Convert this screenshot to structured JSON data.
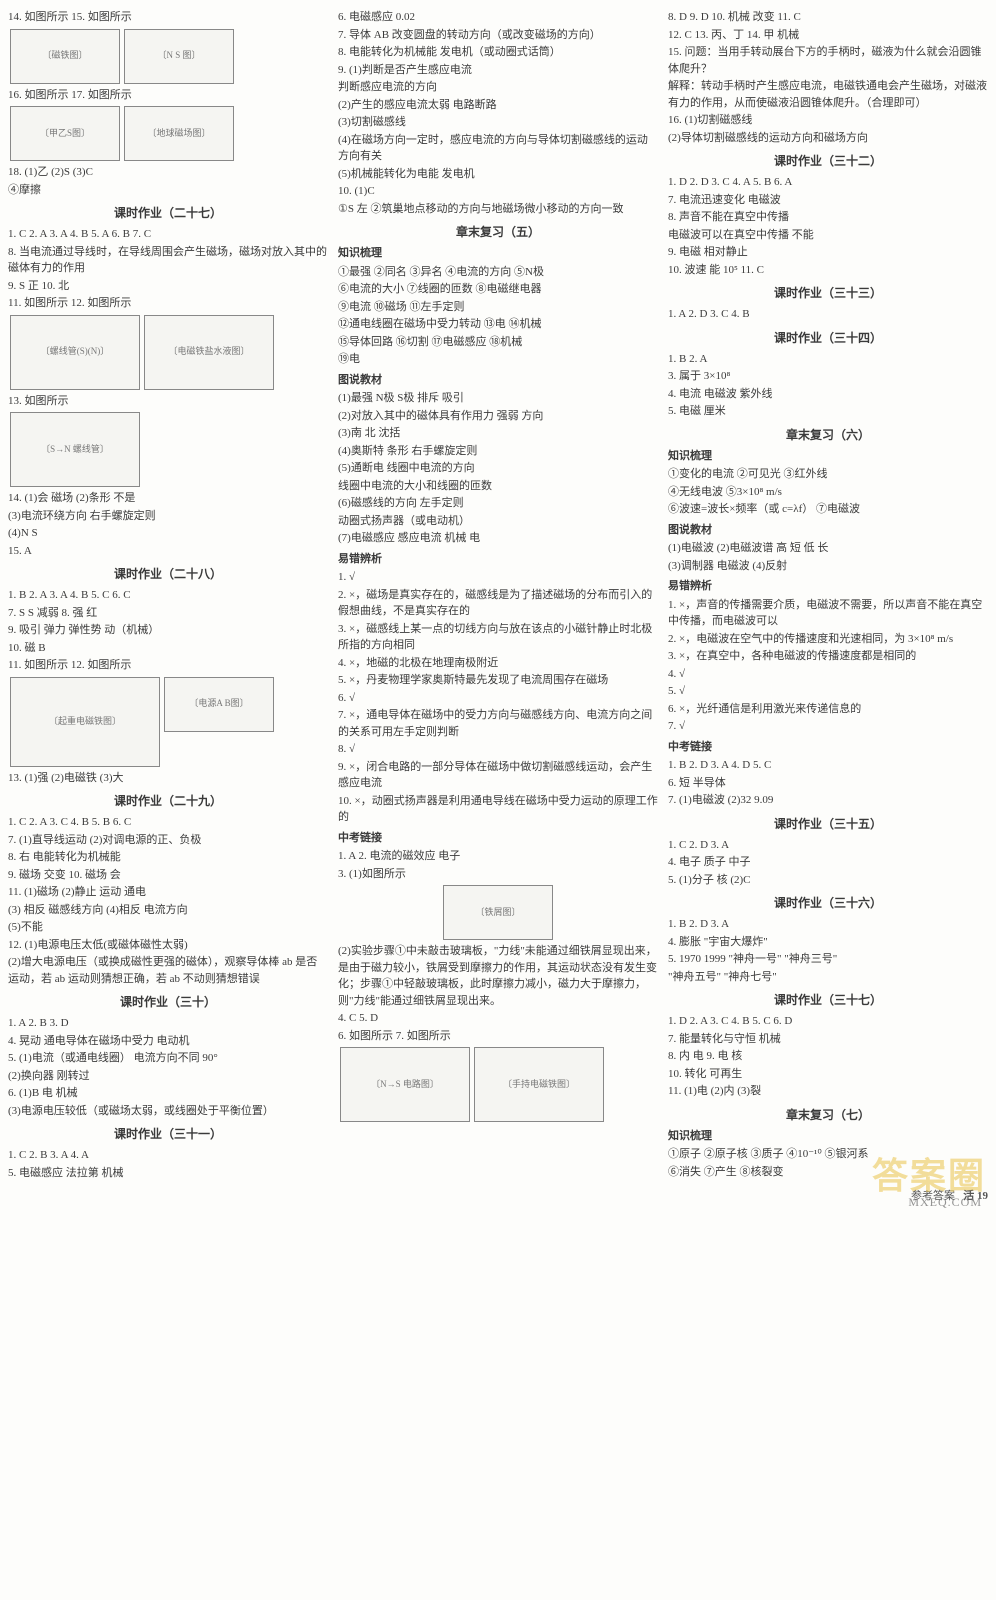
{
  "footer": {
    "text": "参考答案",
    "page": "活 19"
  },
  "watermark": {
    "main": "答案圈",
    "sub": "MXEQ.COM"
  },
  "col1": {
    "items_top": [
      "14. 如图所示        15. 如图所示",
      "16. 如图所示        17. 如图所示",
      "18. (1)乙  (2)S  (3)C",
      "    ④摩擦"
    ],
    "h27": "课时作业（二十七）",
    "l27": [
      "1. C  2. A  3. A  4. B  5. A  6. B  7. C",
      "8. 当电流通过导线时，在导线周围会产生磁场，磁场对放入其中的磁体有力的作用",
      "9. S  正  10. 北",
      "11. 如图所示        12. 如图所示",
      "13. 如图所示",
      "14. (1)会  磁场  (2)条形  不是",
      "    (3)电流环绕方向  右手螺旋定则",
      "    (4)N  S",
      "15. A"
    ],
    "h28": "课时作业（二十八）",
    "l28": [
      "1. B  2. A  3. A  4. B  5. C  6. C",
      "7. S  S  减弱  8. 强  红",
      "9. 吸引  弹力  弹性势  动（机械）",
      "10. 磁  B",
      "11. 如图所示        12. 如图所示",
      "13. (1)强  (2)电磁铁  (3)大"
    ],
    "h29": "课时作业（二十九）",
    "l29": [
      "1. C  2. A  3. C  4. B  5. B  6. C",
      "7. (1)直导线运动  (2)对调电源的正、负极",
      "8. 右  电能转化为机械能",
      "9. 磁场  交变  10. 磁场  会",
      "11. (1)磁场  (2)静止  运动  通电",
      "    (3) 相反  磁感线方向  (4)相反  电流方向",
      "    (5)不能",
      "12. (1)电源电压太低(或磁体磁性太弱)",
      "    (2)增大电源电压（或换成磁性更强的磁体），观察导体棒 ab 是否运动，若 ab 运动则猜想正确，若 ab 不动则猜想错误"
    ],
    "h30": "课时作业（三十）",
    "l30": [
      "1. A  2. B  3. D",
      "4. 晃动  通电导体在磁场中受力  电动机",
      "5. (1)电流（或通电线圈）  电流方向不同  90°",
      "   (2)换向器  刚转过",
      "6. (1)B  电  机械",
      "   (3)电源电压较低（或磁场太弱，或线圈处于平衡位置）"
    ],
    "h31": "课时作业（三十一）",
    "l31": [
      "1. C  2. B  3. A  4. A",
      "5. 电磁感应  法拉第  机械"
    ]
  },
  "col2": {
    "top": [
      "6. 电磁感应  0.02",
      "7. 导体 AB  改变圆盘的转动方向（或改变磁场的方向）",
      "8. 电能转化为机械能  发电机（或动圈式话筒）",
      "9. (1)判断是否产生感应电流",
      "   判断感应电流的方向",
      "   (2)产生的感应电流太弱  电路断路",
      "   (3)切割磁感线",
      "   (4)在磁场方向一定时，感应电流的方向与导体切割磁感线的运动方向有关",
      "   (5)机械能转化为电能  发电机",
      "10. (1)C",
      "    ①S  左  ②筑巢地点移动的方向与地磁场微小移动的方向一致"
    ],
    "h_rev5": "章末复习（五）",
    "sec_zsl": "知识梳理",
    "zsl": [
      "①最强 ②同名 ③异名 ④电流的方向 ⑤N极",
      "⑥电流的大小 ⑦线圈的匝数 ⑧电磁继电器",
      "⑨电流 ⑩磁场 ⑪左手定则",
      "⑫通电线圈在磁场中受力转动 ⑬电 ⑭机械",
      "⑮导体回路 ⑯切割 ⑰电磁感应 ⑱机械",
      "⑲电"
    ],
    "sec_tsjc": "图说教材",
    "tsjc": [
      "(1)最强  N极  S极  排斥  吸引",
      "(2)对放入其中的磁体具有作用力  强弱  方向",
      "(3)南  北  沈括",
      "(4)奥斯特  条形  右手螺旋定则",
      "(5)通断电  线圈中电流的方向",
      "    线圈中电流的大小和线圈的匝数",
      "(6)磁感线的方向  左手定则",
      "    动圈式扬声器（或电动机）",
      "(7)电磁感应  感应电流  机械  电"
    ],
    "sec_ycbx": "易错辨析",
    "ycbx": [
      "1. √",
      "2. ×，磁场是真实存在的，磁感线是为了描述磁场的分布而引入的假想曲线，不是真实存在的",
      "3. ×，磁感线上某一点的切线方向与放在该点的小磁针静止时北极所指的方向相同",
      "4. ×，地磁的北极在地理南极附近",
      "5. ×，丹麦物理学家奥斯特最先发现了电流周围存在磁场",
      "6. √",
      "7. ×，通电导体在磁场中的受力方向与磁感线方向、电流方向之间的关系可用左手定则判断",
      "8. √",
      "9. ×，闭合电路的一部分导体在磁场中做切割磁感线运动，会产生感应电流",
      "10. ×，动圈式扬声器是利用通电导线在磁场中受力运动的原理工作的"
    ],
    "sec_zklj": "中考链接",
    "zklj": [
      "1. A  2. 电流的磁效应  电子",
      "3. (1)如图所示",
      "(2)实验步骤①中未敲击玻璃板，\"力线\"未能通过细铁屑显现出来，是由于磁力较小，铁屑受到摩擦力的作用，其运动状态没有发生变化；步骤①中轻敲玻璃板，此时摩擦力减小，磁力大于摩擦力，则\"力线\"能通过细铁屑显现出来。",
      "4. C  5. D",
      "6. 如图所示        7. 如图所示"
    ]
  },
  "col3": {
    "top": [
      "8. D  9. D  10. 机械  改变  11. C",
      "12. C  13. 丙、丁  14. 甲  机械",
      "15. 问题：当用手转动展台下方的手柄时，磁液为什么就会沿圆锥体爬升？",
      "    解释：转动手柄时产生感应电流，电磁铁通电会产生磁场，对磁液有力的作用，从而使磁液沿圆锥体爬升。（合理即可）",
      "16. (1)切割磁感线",
      "    (2)导体切割磁感线的运动方向和磁场方向"
    ],
    "h32": "课时作业（三十二）",
    "l32": [
      "1. D  2. D  3. C  4. A  5. B  6. A",
      "7. 电流迅速变化  电磁波",
      "8. 声音不能在真空中传播",
      "   电磁波可以在真空中传播  不能",
      "9. 电磁  相对静止",
      "10. 波速  能  10⁵  11. C"
    ],
    "h33": "课时作业（三十三）",
    "l33": [
      "1. A  2. D  3. C  4. B"
    ],
    "h34": "课时作业（三十四）",
    "l34": [
      "1. B  2. A",
      "3. 属于  3×10⁸",
      "4. 电流  电磁波  紫外线",
      "5. 电磁  厘米"
    ],
    "h_rev6": "章末复习（六）",
    "sec_zsl": "知识梳理",
    "zsl6": [
      "①变化的电流  ②可见光  ③红外线",
      "④无线电波  ⑤3×10⁸ m/s",
      "⑥波速=波长×频率（或 c=λf）  ⑦电磁波"
    ],
    "sec_tsjc": "图说教材",
    "tsjc6": [
      "(1)电磁波  (2)电磁波谱  高  短  低  长",
      "(3)调制器  电磁波  (4)反射"
    ],
    "sec_ycbx": "易错辨析",
    "ycbx6": [
      "1. ×，声音的传播需要介质，电磁波不需要，所以声音不能在真空中传播，而电磁波可以",
      "2. ×，电磁波在空气中的传播速度和光速相同，为 3×10⁸ m/s",
      "3. ×，在真空中，各种电磁波的传播速度都是相同的",
      "4. √",
      "5. √",
      "6. ×，光纤通信是利用激光来传递信息的",
      "7. √"
    ],
    "sec_zklj": "中考链接",
    "zklj6": [
      "1. B  2. D  3. A  4. D  5. C",
      "6. 短  半导体",
      "7. (1)电磁波  (2)32  9.09"
    ],
    "h35": "课时作业（三十五）",
    "l35": [
      "1. C  2. D  3. A",
      "4. 电子  质子  中子",
      "5. (1)分子  核  (2)C"
    ],
    "h36": "课时作业（三十六）",
    "l36": [
      "1. B  2. D  3. A",
      "4. 膨胀  \"宇宙大爆炸\"",
      "5. 1970  1999  \"神舟一号\"  \"神舟三号\"",
      "   \"神舟五号\"  \"神舟七号\""
    ],
    "h37": "课时作业（三十七）",
    "l37": [
      "1. D  2. A  3. C  4. B  5. C  6. D",
      "7. 能量转化与守恒  机械",
      "8. 内  电  9. 电  核",
      "10. 转化  可再生",
      "11. (1)电  (2)内  (3)裂"
    ],
    "h_rev7": "章末复习（七）",
    "sec_zsl7": "知识梳理",
    "zsl7": [
      "①原子 ②原子核 ③质子 ④10⁻¹⁰ ⑤银河系",
      "⑥消失 ⑦产生 ⑧核裂变"
    ]
  }
}
